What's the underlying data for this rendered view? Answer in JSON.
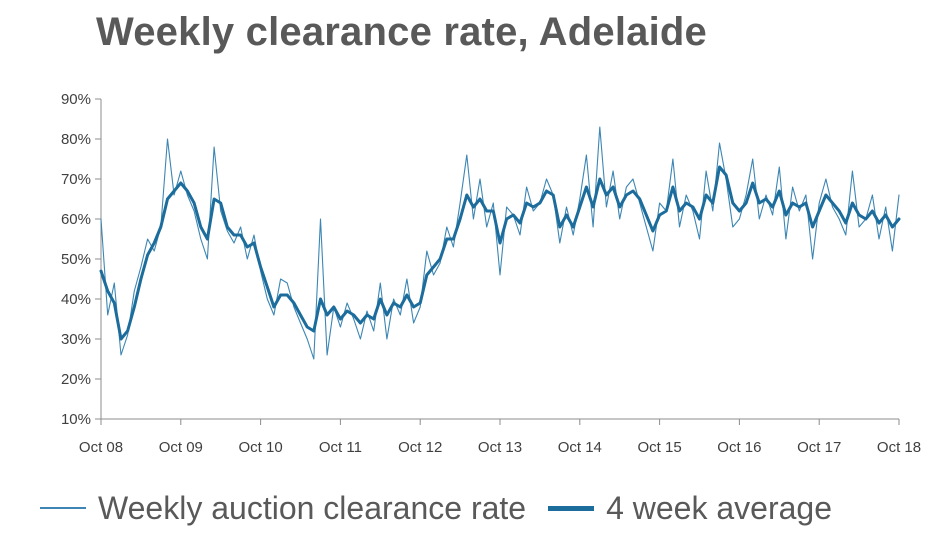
{
  "chart_data": {
    "type": "line",
    "title": "Weekly clearance rate, Adelaide",
    "xlabel": "",
    "ylabel": "",
    "ylim": [
      0.1,
      0.9
    ],
    "y_ticks": [
      0.1,
      0.2,
      0.3,
      0.4,
      0.5,
      0.6,
      0.7,
      0.8,
      0.9
    ],
    "y_tick_labels": [
      "10%",
      "20%",
      "30%",
      "40%",
      "50%",
      "60%",
      "70%",
      "80%",
      "90%"
    ],
    "x_range": [
      "Oct 08",
      "Oct 18"
    ],
    "x_ticks": [
      "Oct 08",
      "Oct 09",
      "Oct 10",
      "Oct 11",
      "Oct 12",
      "Oct 13",
      "Oct 14",
      "Oct 15",
      "Oct 16",
      "Oct 17",
      "Oct 18"
    ],
    "grid": false,
    "legend_position": "bottom",
    "series": [
      {
        "name": "Weekly auction clearance rate",
        "color": "#3d86b3",
        "style": "thin",
        "x": [
          "2008-10",
          "2008-11",
          "2008-12",
          "2009-01",
          "2009-02",
          "2009-03",
          "2009-04",
          "2009-05",
          "2009-06",
          "2009-07",
          "2009-08",
          "2009-09",
          "2009-10",
          "2009-11",
          "2009-12",
          "2010-01",
          "2010-02",
          "2010-03",
          "2010-04",
          "2010-05",
          "2010-06",
          "2010-07",
          "2010-08",
          "2010-09",
          "2010-10",
          "2010-11",
          "2010-12",
          "2011-01",
          "2011-02",
          "2011-03",
          "2011-04",
          "2011-05",
          "2011-06",
          "2011-07",
          "2011-08",
          "2011-09",
          "2011-10",
          "2011-11",
          "2011-12",
          "2012-01",
          "2012-02",
          "2012-03",
          "2012-04",
          "2012-05",
          "2012-06",
          "2012-07",
          "2012-08",
          "2012-09",
          "2012-10",
          "2012-11",
          "2012-12",
          "2013-01",
          "2013-02",
          "2013-03",
          "2013-04",
          "2013-05",
          "2013-06",
          "2013-07",
          "2013-08",
          "2013-09",
          "2013-10",
          "2013-11",
          "2013-12",
          "2014-01",
          "2014-02",
          "2014-03",
          "2014-04",
          "2014-05",
          "2014-06",
          "2014-07",
          "2014-08",
          "2014-09",
          "2014-10",
          "2014-11",
          "2014-12",
          "2015-01",
          "2015-02",
          "2015-03",
          "2015-04",
          "2015-05",
          "2015-06",
          "2015-07",
          "2015-08",
          "2015-09",
          "2015-10",
          "2015-11",
          "2015-12",
          "2016-01",
          "2016-02",
          "2016-03",
          "2016-04",
          "2016-05",
          "2016-06",
          "2016-07",
          "2016-08",
          "2016-09",
          "2016-10",
          "2016-11",
          "2016-12",
          "2017-01",
          "2017-02",
          "2017-03",
          "2017-04",
          "2017-05",
          "2017-06",
          "2017-07",
          "2017-08",
          "2017-09",
          "2017-10",
          "2017-11",
          "2017-12",
          "2018-01",
          "2018-02",
          "2018-03",
          "2018-04",
          "2018-05",
          "2018-06",
          "2018-07",
          "2018-08",
          "2018-09",
          "2018-10"
        ],
        "values": [
          0.6,
          0.36,
          0.44,
          0.26,
          0.31,
          0.42,
          0.48,
          0.55,
          0.52,
          0.58,
          0.8,
          0.66,
          0.72,
          0.66,
          0.62,
          0.55,
          0.5,
          0.78,
          0.62,
          0.57,
          0.54,
          0.58,
          0.5,
          0.56,
          0.47,
          0.4,
          0.36,
          0.45,
          0.44,
          0.38,
          0.34,
          0.3,
          0.25,
          0.6,
          0.26,
          0.38,
          0.33,
          0.39,
          0.35,
          0.3,
          0.37,
          0.32,
          0.44,
          0.3,
          0.4,
          0.36,
          0.45,
          0.34,
          0.38,
          0.52,
          0.46,
          0.49,
          0.58,
          0.53,
          0.64,
          0.76,
          0.6,
          0.7,
          0.58,
          0.64,
          0.46,
          0.63,
          0.61,
          0.56,
          0.68,
          0.62,
          0.64,
          0.7,
          0.66,
          0.54,
          0.63,
          0.56,
          0.65,
          0.76,
          0.58,
          0.83,
          0.63,
          0.72,
          0.6,
          0.68,
          0.7,
          0.64,
          0.58,
          0.52,
          0.64,
          0.62,
          0.75,
          0.58,
          0.66,
          0.62,
          0.55,
          0.72,
          0.62,
          0.79,
          0.7,
          0.58,
          0.6,
          0.66,
          0.75,
          0.6,
          0.66,
          0.61,
          0.73,
          0.55,
          0.68,
          0.62,
          0.66,
          0.5,
          0.64,
          0.7,
          0.63,
          0.6,
          0.56,
          0.72,
          0.58,
          0.6,
          0.66,
          0.55,
          0.63,
          0.52,
          0.66
        ]
      },
      {
        "name": "4 week average",
        "color": "#1c6c9c",
        "style": "thick",
        "x": [
          "2008-10",
          "2008-11",
          "2008-12",
          "2009-01",
          "2009-02",
          "2009-03",
          "2009-04",
          "2009-05",
          "2009-06",
          "2009-07",
          "2009-08",
          "2009-09",
          "2009-10",
          "2009-11",
          "2009-12",
          "2010-01",
          "2010-02",
          "2010-03",
          "2010-04",
          "2010-05",
          "2010-06",
          "2010-07",
          "2010-08",
          "2010-09",
          "2010-10",
          "2010-11",
          "2010-12",
          "2011-01",
          "2011-02",
          "2011-03",
          "2011-04",
          "2011-05",
          "2011-06",
          "2011-07",
          "2011-08",
          "2011-09",
          "2011-10",
          "2011-11",
          "2011-12",
          "2012-01",
          "2012-02",
          "2012-03",
          "2012-04",
          "2012-05",
          "2012-06",
          "2012-07",
          "2012-08",
          "2012-09",
          "2012-10",
          "2012-11",
          "2012-12",
          "2013-01",
          "2013-02",
          "2013-03",
          "2013-04",
          "2013-05",
          "2013-06",
          "2013-07",
          "2013-08",
          "2013-09",
          "2013-10",
          "2013-11",
          "2013-12",
          "2014-01",
          "2014-02",
          "2014-03",
          "2014-04",
          "2014-05",
          "2014-06",
          "2014-07",
          "2014-08",
          "2014-09",
          "2014-10",
          "2014-11",
          "2014-12",
          "2015-01",
          "2015-02",
          "2015-03",
          "2015-04",
          "2015-05",
          "2015-06",
          "2015-07",
          "2015-08",
          "2015-09",
          "2015-10",
          "2015-11",
          "2015-12",
          "2016-01",
          "2016-02",
          "2016-03",
          "2016-04",
          "2016-05",
          "2016-06",
          "2016-07",
          "2016-08",
          "2016-09",
          "2016-10",
          "2016-11",
          "2016-12",
          "2017-01",
          "2017-02",
          "2017-03",
          "2017-04",
          "2017-05",
          "2017-06",
          "2017-07",
          "2017-08",
          "2017-09",
          "2017-10",
          "2017-11",
          "2017-12",
          "2018-01",
          "2018-02",
          "2018-03",
          "2018-04",
          "2018-05",
          "2018-06",
          "2018-07",
          "2018-08",
          "2018-09",
          "2018-10"
        ],
        "values": [
          0.47,
          0.42,
          0.39,
          0.3,
          0.32,
          0.38,
          0.45,
          0.51,
          0.54,
          0.58,
          0.65,
          0.67,
          0.69,
          0.67,
          0.64,
          0.58,
          0.55,
          0.65,
          0.64,
          0.58,
          0.56,
          0.56,
          0.53,
          0.54,
          0.48,
          0.43,
          0.38,
          0.41,
          0.41,
          0.39,
          0.36,
          0.33,
          0.32,
          0.4,
          0.36,
          0.38,
          0.35,
          0.37,
          0.36,
          0.34,
          0.36,
          0.35,
          0.4,
          0.36,
          0.39,
          0.38,
          0.41,
          0.38,
          0.39,
          0.46,
          0.48,
          0.5,
          0.55,
          0.55,
          0.6,
          0.66,
          0.63,
          0.65,
          0.62,
          0.62,
          0.54,
          0.6,
          0.61,
          0.59,
          0.64,
          0.63,
          0.64,
          0.67,
          0.66,
          0.58,
          0.61,
          0.58,
          0.63,
          0.68,
          0.63,
          0.7,
          0.66,
          0.68,
          0.63,
          0.66,
          0.67,
          0.65,
          0.61,
          0.57,
          0.61,
          0.62,
          0.68,
          0.62,
          0.64,
          0.63,
          0.6,
          0.66,
          0.64,
          0.73,
          0.71,
          0.64,
          0.62,
          0.64,
          0.69,
          0.64,
          0.65,
          0.63,
          0.67,
          0.61,
          0.64,
          0.63,
          0.64,
          0.58,
          0.62,
          0.66,
          0.64,
          0.62,
          0.59,
          0.64,
          0.61,
          0.6,
          0.62,
          0.59,
          0.61,
          0.58,
          0.6
        ]
      }
    ]
  }
}
